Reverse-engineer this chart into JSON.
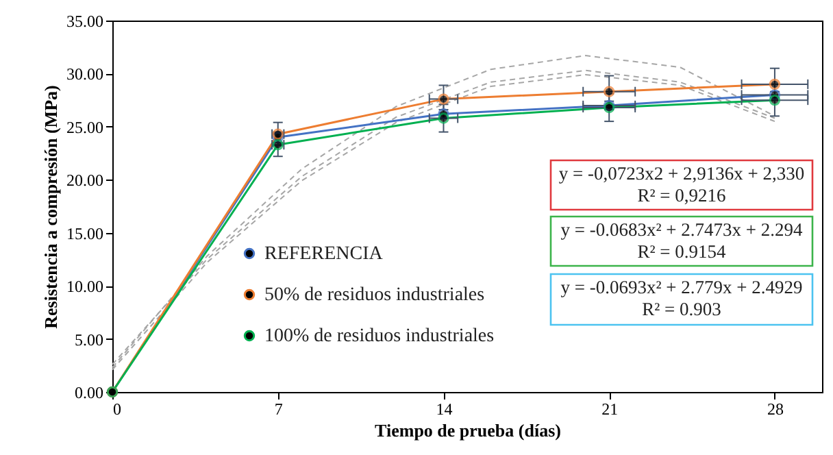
{
  "chart_data": {
    "type": "line",
    "xlabel": "Tiempo de prueba (días)",
    "ylabel": "Resistencia a compresión (MPa)",
    "xlim": [
      0,
      30
    ],
    "xticks": [
      0,
      7,
      14,
      21,
      28
    ],
    "ylim": [
      0,
      35
    ],
    "yticks": [
      {
        "value": 0,
        "label": "0.00"
      },
      {
        "value": 5,
        "label": "5.00"
      },
      {
        "value": 10,
        "label": "10.00"
      },
      {
        "value": 15,
        "label": "15.00"
      },
      {
        "value": 20,
        "label": "20.00"
      },
      {
        "value": 25,
        "label": "25.00"
      },
      {
        "value": 30,
        "label": "30.00"
      },
      {
        "value": 35,
        "label": "35.00"
      }
    ],
    "x": [
      0,
      7,
      14,
      21,
      28
    ],
    "marker": "circle",
    "legend": "left",
    "grid": false,
    "series": [
      {
        "name": "REFERENCIA",
        "color": "#4472c4",
        "values": [
          0,
          24.0,
          26.2,
          27.0,
          28.0
        ],
        "errors": [
          null,
          0.5,
          0.4,
          0.4,
          0.3
        ],
        "xerrors": [
          null,
          null,
          null,
          1.1,
          1.4
        ]
      },
      {
        "name": "50% de residuos industriales",
        "color": "#ed7d31",
        "values": [
          0,
          24.3,
          27.6,
          28.3,
          29.0
        ],
        "errors": [
          null,
          1.1,
          1.3,
          1.5,
          1.5
        ],
        "xerrors": [
          null,
          0.25,
          0.6,
          1.1,
          1.4
        ]
      },
      {
        "name": "100% de residuos industriales",
        "color": "#00b050",
        "values": [
          0,
          23.3,
          25.8,
          26.8,
          27.5
        ],
        "errors": [
          null,
          1.1,
          1.3,
          1.3,
          1.5
        ],
        "xerrors": [
          null,
          0.25,
          0.6,
          1.1,
          1.4
        ]
      },
      {
        "type": "line",
        "color": "#a6a6a6",
        "line_style": "dashed",
        "marker": "none",
        "x": [
          0,
          4,
          8,
          12,
          16,
          20,
          24,
          28
        ],
        "values": [
          2.3,
          12.8,
          21.0,
          26.9,
          30.4,
          31.7,
          30.6,
          26.0
        ]
      },
      {
        "type": "line",
        "color": "#a6a6a6",
        "line_style": "dashed",
        "marker": "none",
        "x": [
          0,
          4,
          8,
          12,
          16,
          20,
          24,
          28
        ],
        "values": [
          2.1,
          12.2,
          19.9,
          25.4,
          28.8,
          29.9,
          28.9,
          25.5
        ]
      },
      {
        "type": "line",
        "color": "#a6a6a6",
        "line_style": "dashed",
        "marker": "none",
        "x": [
          0,
          4,
          8,
          12,
          16,
          20,
          24,
          28
        ],
        "values": [
          2.6,
          12.5,
          20.3,
          25.9,
          29.2,
          30.3,
          29.2,
          25.8
        ]
      }
    ],
    "annotations": [
      "y = -0,0723x2 + 2,9136x + 2,330",
      "R² = 0,9216",
      "y = -0.0683x² + 2.7473x + 2.294",
      "R² = 0.9154",
      "y = -0.0693x² + 2.779x + 2.4929",
      "R² = 0.903"
    ]
  }
}
